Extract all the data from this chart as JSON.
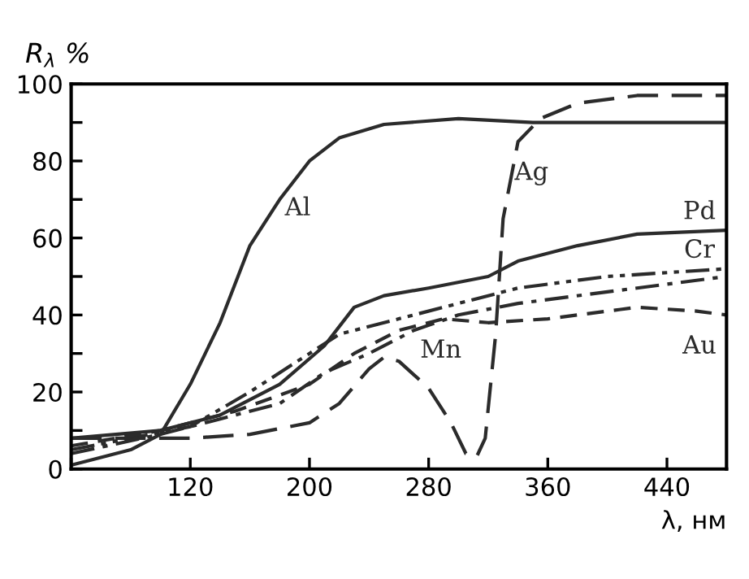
{
  "chart_data": {
    "type": "line",
    "ylabel": "R$_{λ}$ %",
    "xlabel": "λ, нм",
    "xlim": [
      40,
      480
    ],
    "xticks": [
      {
        "value": 40,
        "label": null
      },
      120,
      200,
      280,
      360,
      440
    ],
    "ylim": [
      0,
      100
    ],
    "yticks": [
      0,
      {
        "value": 10,
        "label": null
      },
      20,
      {
        "value": 30,
        "label": null
      },
      40,
      {
        "value": 50,
        "label": null
      },
      60,
      {
        "value": 70,
        "label": null
      },
      80,
      {
        "value": 90,
        "label": null
      },
      100
    ],
    "grid": false,
    "legend": false,
    "series": [
      {
        "name": "Al",
        "color": "#2b2b2b",
        "line_style": "solid",
        "x": [
          40,
          60,
          80,
          100,
          120,
          140,
          160,
          180,
          200,
          220,
          250,
          300,
          350,
          480
        ],
        "values": [
          1,
          3,
          5,
          9,
          22,
          38,
          58,
          70,
          80,
          86,
          89.5,
          91,
          90,
          90
        ]
      },
      {
        "name": "Ag",
        "color": "#2b2b2b",
        "line_style": "longdash",
        "x": [
          40,
          80,
          120,
          160,
          200,
          220,
          240,
          250,
          260,
          280,
          295,
          305,
          312,
          318,
          325,
          330,
          340,
          355,
          380,
          420,
          480
        ],
        "values": [
          8,
          8,
          8,
          9,
          12,
          17,
          26,
          29,
          28,
          21,
          12,
          4,
          3,
          8,
          35,
          65,
          85,
          91,
          95,
          97,
          97
        ]
      },
      {
        "name": "Pd",
        "color": "#2b2b2b",
        "line_style": "solid",
        "x": [
          40,
          100,
          140,
          180,
          210,
          230,
          250,
          280,
          320,
          340,
          380,
          420,
          480
        ],
        "values": [
          8,
          10,
          14,
          22,
          32,
          42,
          45,
          47,
          50,
          54,
          58,
          61,
          62
        ]
      },
      {
        "name": "Cr",
        "color": "#2b2b2b",
        "line_style": "dashdotdot",
        "x": [
          40,
          80,
          120,
          160,
          200,
          220,
          260,
          300,
          340,
          400,
          480
        ],
        "values": [
          5,
          8,
          11,
          20,
          30,
          35,
          39,
          43,
          47,
          50,
          52
        ]
      },
      {
        "name": "Mn",
        "color": "#2b2b2b",
        "line_style": "dashdot",
        "x": [
          40,
          100,
          140,
          180,
          210,
          240,
          270,
          300,
          340,
          400,
          480
        ],
        "values": [
          4,
          9,
          13,
          17,
          25,
          30,
          36,
          40,
          43,
          46,
          50
        ]
      },
      {
        "name": "Au",
        "color": "#2b2b2b",
        "line_style": "dashed",
        "x": [
          40,
          100,
          150,
          200,
          230,
          260,
          290,
          320,
          360,
          420,
          460,
          480
        ],
        "values": [
          6,
          10,
          15,
          22,
          30,
          36,
          39,
          38,
          39,
          42,
          41,
          40
        ]
      }
    ]
  }
}
